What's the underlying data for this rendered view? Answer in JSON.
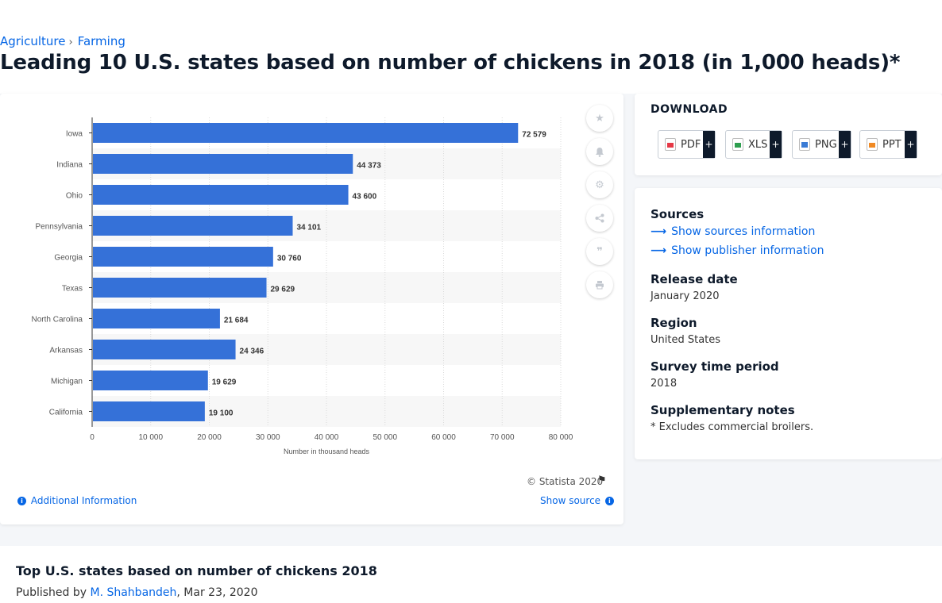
{
  "breadcrumb": {
    "items": [
      "Agriculture",
      "Farming"
    ],
    "separator": "›"
  },
  "page_title": "Leading 10 U.S. states based on number of chickens in 2018 (in 1,000 heads)*",
  "chart_footer": {
    "copyright": "© Statista 2020",
    "additional_info": "Additional Information",
    "show_source": "Show source"
  },
  "toolbar_icons": [
    "star-icon",
    "bell-icon",
    "gear-icon",
    "share-icon",
    "quote-icon",
    "print-icon"
  ],
  "download": {
    "title": "DOWNLOAD",
    "buttons": [
      {
        "label": "PDF",
        "plus": "+",
        "color": "#e63946"
      },
      {
        "label": "XLS",
        "plus": "+",
        "color": "#2e9e4f"
      },
      {
        "label": "PNG",
        "plus": "+",
        "color": "#3a7bd5"
      },
      {
        "label": "PPT",
        "plus": "+",
        "color": "#f08a24"
      }
    ]
  },
  "meta": {
    "sources_heading": "Sources",
    "show_sources": "Show sources information",
    "show_publisher": "Show publisher information",
    "release_heading": "Release date",
    "release_value": "January 2020",
    "region_heading": "Region",
    "region_value": "United States",
    "survey_heading": "Survey time period",
    "survey_value": "2018",
    "notes_heading": "Supplementary notes",
    "notes_value": "* Excludes commercial broilers."
  },
  "bottom": {
    "title": "Top U.S. states based on number of chickens 2018",
    "published_prefix": "Published by",
    "author": "M. Shahbandeh",
    "date": ", Mar 23, 2020"
  },
  "colors": {
    "bar": "#3571d8",
    "accent": "#0666e5",
    "stripe": "#f7f7f7"
  },
  "chart_data": {
    "type": "bar",
    "orientation": "horizontal",
    "categories": [
      "Iowa",
      "Indiana",
      "Ohio",
      "Pennsylvania",
      "Georgia",
      "Texas",
      "North Carolina",
      "Arkansas",
      "Michigan",
      "California"
    ],
    "values": [
      72579,
      44373,
      43600,
      34101,
      30760,
      29629,
      21684,
      24346,
      19629,
      19100
    ],
    "value_labels": [
      "72 579",
      "44 373",
      "43 600",
      "34 101",
      "30 760",
      "29 629",
      "21 684",
      "24 346",
      "19 629",
      "19 100"
    ],
    "xlabel": "Number in thousand heads",
    "xlim": [
      0,
      80000
    ],
    "xticks": [
      0,
      10000,
      20000,
      30000,
      40000,
      50000,
      60000,
      70000,
      80000
    ],
    "xtick_labels": [
      "0",
      "10 000",
      "20 000",
      "30 000",
      "40 000",
      "50 000",
      "60 000",
      "70 000",
      "80 000"
    ],
    "grid": true
  }
}
